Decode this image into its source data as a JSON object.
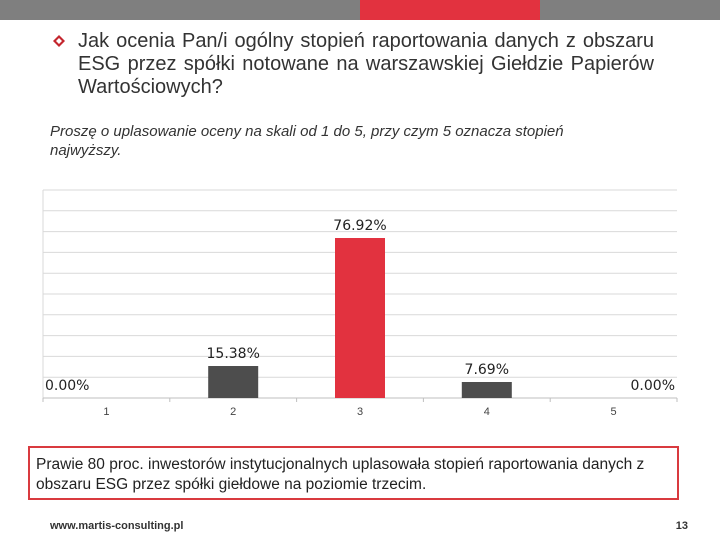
{
  "colors": {
    "accent": "#e2323f",
    "bar_dark": "#4d4d4d",
    "grid": "#d9d9d9",
    "header_gray": "#7f7f7f"
  },
  "slide": {
    "question": "Jak ocenia Pan/i ogólny stopień raportowania danych z obszaru ESG przez spółki notowane na warszawskiej Giełdzie Papierów Wartościowych?",
    "instruction": "Proszę o uplasowanie oceny na skali od 1 do 5, przy czym 5 oznacza stopień najwyższy.",
    "note": "Prawie 80 proc. inwestorów instytucjonalnych uplasowała stopień raportowania danych z obszaru ESG przez spółki giełdowe na poziomie trzecim.",
    "footer_url": "www.martis-consulting.pl",
    "page_number": "13"
  },
  "chart_data": {
    "type": "bar",
    "categories": [
      "1",
      "2",
      "3",
      "4",
      "5"
    ],
    "values": [
      0,
      15.38,
      76.92,
      7.69,
      0
    ],
    "data_labels": [
      "0.00%",
      "15.38%",
      "76.92%",
      "7.69%",
      "0.00%"
    ],
    "highlight_index": 2,
    "ylim": [
      0,
      100
    ],
    "grid": true,
    "legend": "none"
  }
}
